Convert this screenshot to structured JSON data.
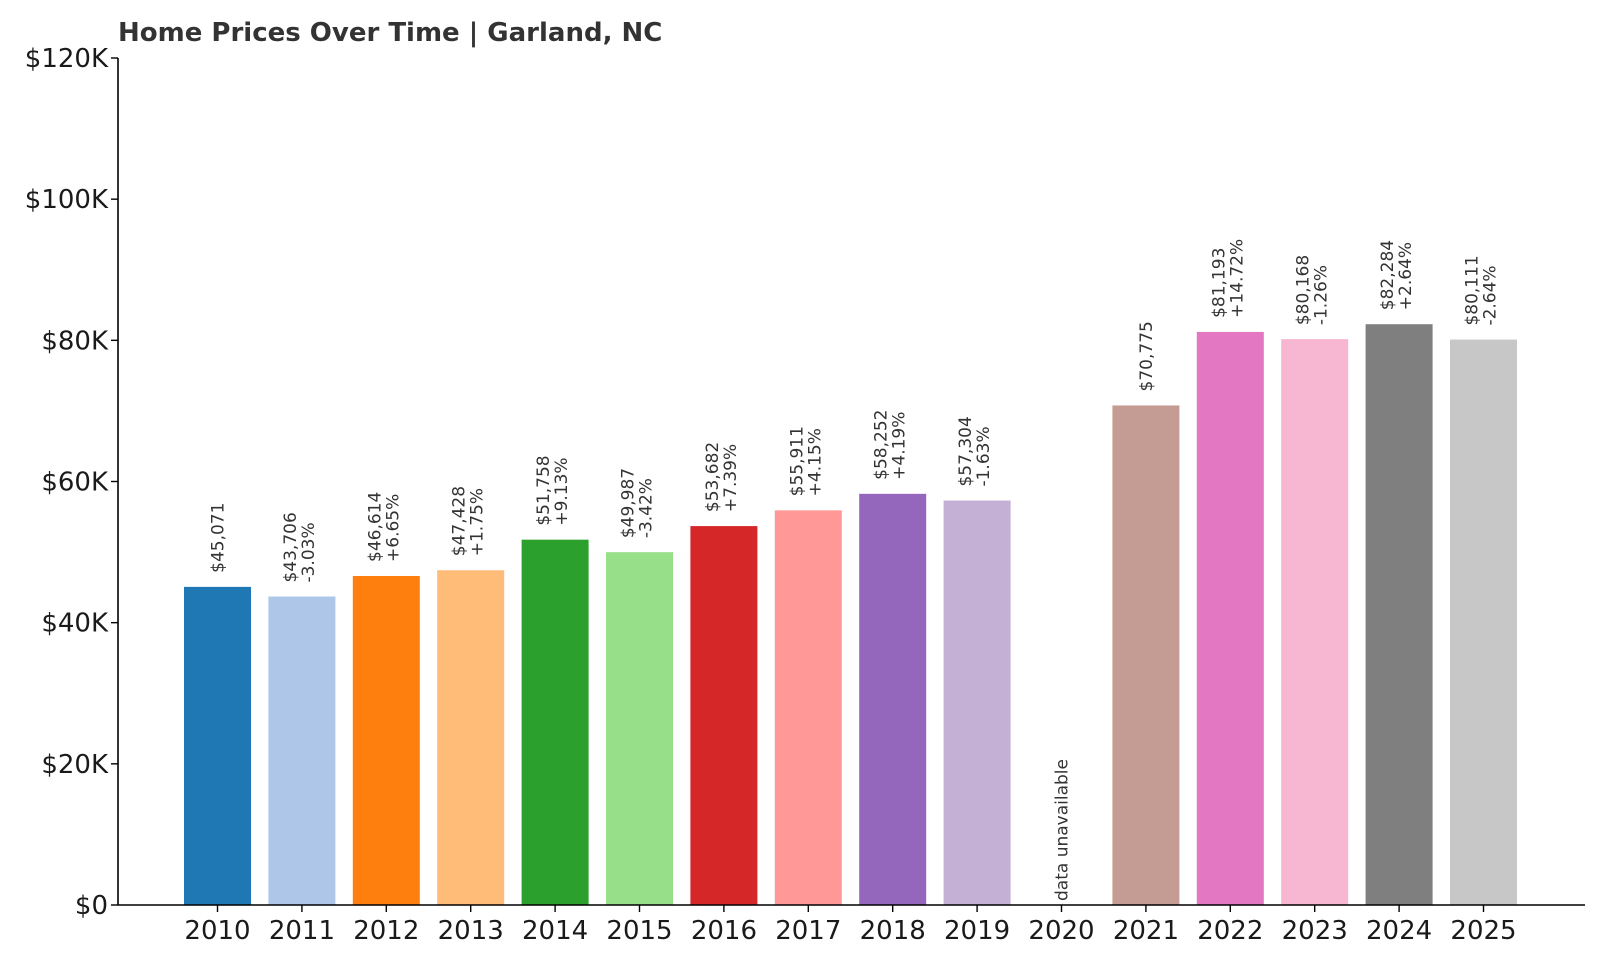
{
  "chart_data": {
    "type": "bar",
    "title": "Home Prices Over Time | Garland, NC",
    "xlabel": "",
    "ylabel": "",
    "ylim": [
      0,
      120000
    ],
    "yticks": [
      0,
      20000,
      40000,
      60000,
      80000,
      100000,
      120000
    ],
    "ytick_labels": [
      "$0",
      "$20K",
      "$40K",
      "$60K",
      "$80K",
      "$100K",
      "$120K"
    ],
    "categories": [
      "2010",
      "2011",
      "2012",
      "2013",
      "2014",
      "2015",
      "2016",
      "2017",
      "2018",
      "2019",
      "2020",
      "2021",
      "2022",
      "2023",
      "2024",
      "2025"
    ],
    "values": [
      45071,
      43706,
      46614,
      47428,
      51758,
      49987,
      53682,
      55911,
      58252,
      57304,
      null,
      70775,
      81193,
      80168,
      82284,
      80111
    ],
    "value_labels": [
      "$45,071",
      "$43,706",
      "$46,614",
      "$47,428",
      "$51,758",
      "$49,987",
      "$53,682",
      "$55,911",
      "$58,252",
      "$57,304",
      "",
      "$70,775",
      "$81,193",
      "$80,168",
      "$82,284",
      "$80,111"
    ],
    "change_labels": [
      "",
      "-3.03%",
      "+6.65%",
      "+1.75%",
      "+9.13%",
      "-3.42%",
      "+7.39%",
      "+4.15%",
      "+4.19%",
      "-1.63%",
      "",
      "",
      "+14.72%",
      "-1.26%",
      "+2.64%",
      "-2.64%"
    ],
    "missing_label": "data unavailable",
    "colors": [
      "#1f77b4",
      "#aec7e8",
      "#ff7f0e",
      "#ffbb78",
      "#2ca02c",
      "#98df8a",
      "#d62728",
      "#ff9896",
      "#9467bd",
      "#c5b0d5",
      "#8c564b",
      "#c49c94",
      "#e377c2",
      "#f7b6d2",
      "#7f7f7f",
      "#c7c7c7"
    ],
    "grid": false,
    "legend": "none"
  }
}
